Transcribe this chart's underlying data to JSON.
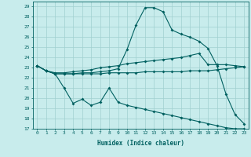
{
  "title": "",
  "xlabel": "Humidex (Indice chaleur)",
  "ylabel": "",
  "bg_color": "#c8ecec",
  "line_color": "#006060",
  "grid_color": "#a0d0d0",
  "xlim": [
    -0.5,
    23.5
  ],
  "ylim": [
    17,
    29.5
  ],
  "yticks": [
    17,
    18,
    19,
    20,
    21,
    22,
    23,
    24,
    25,
    26,
    27,
    28,
    29
  ],
  "xticks": [
    0,
    1,
    2,
    3,
    4,
    5,
    6,
    7,
    8,
    9,
    10,
    11,
    12,
    13,
    14,
    15,
    16,
    17,
    18,
    19,
    20,
    21,
    22,
    23
  ],
  "line1_x": [
    0,
    1,
    2,
    3,
    4,
    5,
    6,
    7,
    8,
    9,
    10,
    11,
    12,
    13,
    14,
    15,
    16,
    17,
    18,
    19,
    20,
    21,
    22,
    23
  ],
  "line1_y": [
    23.2,
    22.7,
    22.4,
    22.4,
    22.4,
    22.5,
    22.5,
    22.6,
    22.7,
    22.9,
    24.8,
    27.2,
    28.9,
    28.9,
    28.5,
    26.7,
    26.3,
    26.0,
    25.6,
    24.9,
    23.2,
    20.4,
    18.4,
    17.5
  ],
  "line2_x": [
    0,
    1,
    2,
    3,
    4,
    5,
    6,
    7,
    8,
    9,
    10,
    11,
    12,
    13,
    14,
    15,
    16,
    17,
    18,
    19,
    20,
    21,
    22,
    23
  ],
  "line2_y": [
    23.2,
    22.7,
    22.5,
    22.5,
    22.6,
    22.7,
    22.8,
    23.0,
    23.1,
    23.2,
    23.4,
    23.5,
    23.6,
    23.7,
    23.8,
    23.9,
    24.0,
    24.2,
    24.4,
    23.3,
    23.3,
    23.3,
    23.2,
    23.1
  ],
  "line3_x": [
    0,
    1,
    2,
    3,
    4,
    5,
    6,
    7,
    8,
    9,
    10,
    11,
    12,
    13,
    14,
    15,
    16,
    17,
    18,
    19,
    20,
    21,
    22,
    23
  ],
  "line3_y": [
    23.2,
    22.7,
    22.4,
    22.4,
    22.4,
    22.4,
    22.4,
    22.4,
    22.5,
    22.5,
    22.5,
    22.5,
    22.6,
    22.6,
    22.6,
    22.6,
    22.6,
    22.7,
    22.7,
    22.7,
    22.8,
    22.9,
    23.0,
    23.1
  ],
  "line4_x": [
    0,
    1,
    2,
    3,
    4,
    5,
    6,
    7,
    8,
    9,
    10,
    11,
    12,
    13,
    14,
    15,
    16,
    17,
    18,
    19,
    20,
    21,
    22,
    23
  ],
  "line4_y": [
    23.2,
    22.7,
    22.4,
    21.0,
    19.5,
    19.9,
    19.3,
    19.6,
    21.0,
    19.6,
    19.3,
    19.1,
    18.9,
    18.7,
    18.5,
    18.3,
    18.1,
    17.9,
    17.7,
    17.5,
    17.3,
    17.1,
    17.0,
    17.0
  ]
}
